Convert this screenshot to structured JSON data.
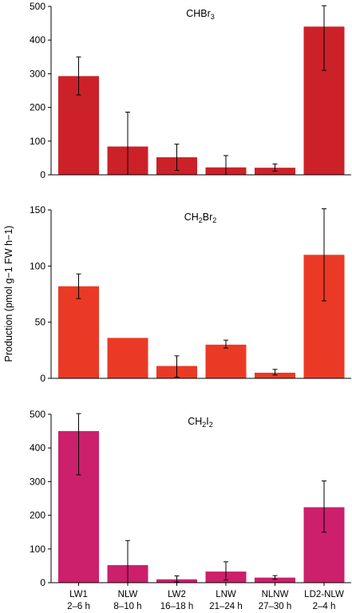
{
  "ylabel": "Production (pmol g−1 FW h−1)",
  "categories": [
    {
      "line1": "LW1",
      "line2": "2–6 h"
    },
    {
      "line1": "NLW",
      "line2": "8–10 h"
    },
    {
      "line1": "LW2",
      "line2": "16–18 h"
    },
    {
      "line1": "LNW",
      "line2": "21–24 h"
    },
    {
      "line1": "NLNW",
      "line2": "27–30 h"
    },
    {
      "line1": "LD2-NLW",
      "line2": "2–4 h"
    }
  ],
  "chart_data": [
    {
      "type": "bar",
      "title": "CHBr3",
      "title_parts": [
        {
          "t": "CHBr"
        },
        {
          "t": "3",
          "sub": true
        }
      ],
      "color": "#cc2128",
      "ylim": [
        0,
        500
      ],
      "yticks": [
        0,
        100,
        200,
        300,
        400,
        500
      ],
      "values": [
        293,
        84,
        52,
        22,
        21,
        440
      ],
      "err_low": [
        237,
        0,
        13,
        0,
        11,
        310
      ],
      "err_high": [
        350,
        186,
        91,
        57,
        32,
        502
      ]
    },
    {
      "type": "bar",
      "title": "CH2Br2",
      "title_parts": [
        {
          "t": "CH"
        },
        {
          "t": "2",
          "sub": true
        },
        {
          "t": "Br"
        },
        {
          "t": "2",
          "sub": true
        }
      ],
      "color": "#ea3a25",
      "ylim": [
        0,
        150
      ],
      "yticks": [
        0,
        50,
        100,
        150
      ],
      "values": [
        82,
        36,
        11,
        30,
        5,
        110
      ],
      "err_low": [
        71,
        null,
        1,
        27,
        3,
        69
      ],
      "err_high": [
        93,
        null,
        20,
        34,
        8,
        151
      ]
    },
    {
      "type": "bar",
      "title": "CH2I2",
      "title_parts": [
        {
          "t": "CH"
        },
        {
          "t": "2",
          "sub": true
        },
        {
          "t": "I"
        },
        {
          "t": "2",
          "sub": true
        }
      ],
      "color": "#cc1f6c",
      "ylim": [
        0,
        500
      ],
      "yticks": [
        0,
        100,
        200,
        300,
        400,
        500
      ],
      "values": [
        450,
        52,
        10,
        33,
        15,
        224
      ],
      "err_low": [
        320,
        0,
        2,
        8,
        10,
        150
      ],
      "err_high": [
        502,
        125,
        20,
        62,
        21,
        302
      ]
    }
  ]
}
